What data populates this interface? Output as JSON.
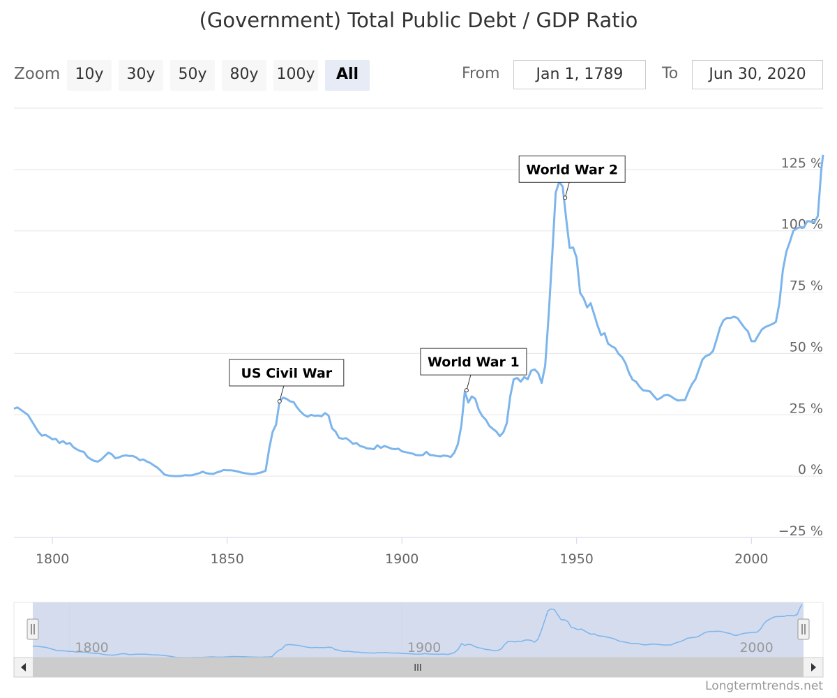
{
  "title": "(Government) Total Public Debt / GDP Ratio",
  "range_selector": {
    "zoom_label": "Zoom",
    "buttons": [
      "10y",
      "30y",
      "50y",
      "80y",
      "100y",
      "All"
    ],
    "active": "All",
    "from_label": "From",
    "from_value": "Jan 1, 1789",
    "to_label": "To",
    "to_value": "Jun 30, 2020"
  },
  "footer": "Longtermtrends.net",
  "navigator": {
    "tick_labels": [
      "1800",
      "1900",
      "2000"
    ],
    "scrollbar_grip": "III"
  },
  "colors": {
    "series": "#7cb5ec",
    "navigator_mask": "#ccd6eb"
  },
  "chart_data": {
    "type": "line",
    "title": "(Government) Total Public Debt / GDP Ratio",
    "xlabel": "",
    "ylabel": "",
    "x_ticks": [
      "1800",
      "1850",
      "1900",
      "1950",
      "2000"
    ],
    "y_ticks": [
      "125 %",
      "100 %",
      "75 %",
      "50 %",
      "25 %",
      "0 %",
      "−25 %"
    ],
    "xlim": [
      1789,
      2020.5
    ],
    "ylim": [
      -25,
      150
    ],
    "grid": true,
    "series": [
      {
        "values": [
          [
            1789,
            27.5
          ],
          [
            1790,
            28
          ],
          [
            1793,
            25
          ],
          [
            1796,
            18
          ],
          [
            1797,
            16.5
          ],
          [
            1798,
            16.8
          ],
          [
            1799,
            16
          ],
          [
            1800,
            15
          ],
          [
            1801,
            15.2
          ],
          [
            1802,
            13.5
          ],
          [
            1803,
            14.3
          ],
          [
            1804,
            13.2
          ],
          [
            1805,
            13.5
          ],
          [
            1806,
            11.8
          ],
          [
            1807,
            10.9
          ],
          [
            1808,
            10.2
          ],
          [
            1809,
            9.9
          ],
          [
            1810,
            7.9
          ],
          [
            1811,
            6.9
          ],
          [
            1812,
            6.2
          ],
          [
            1813,
            5.9
          ],
          [
            1814,
            6.8
          ],
          [
            1815,
            8.2
          ],
          [
            1816,
            9.6
          ],
          [
            1817,
            8.9
          ],
          [
            1818,
            7.3
          ],
          [
            1819,
            7.6
          ],
          [
            1820,
            8.2
          ],
          [
            1821,
            8.5
          ],
          [
            1822,
            8.2
          ],
          [
            1823,
            8.2
          ],
          [
            1824,
            7.6
          ],
          [
            1825,
            6.5
          ],
          [
            1826,
            6.8
          ],
          [
            1827,
            6
          ],
          [
            1828,
            5.4
          ],
          [
            1829,
            4.4
          ],
          [
            1830,
            3.5
          ],
          [
            1831,
            2.2
          ],
          [
            1832,
            0.7
          ],
          [
            1833,
            0.3
          ],
          [
            1834,
            0.1
          ],
          [
            1835,
            0
          ],
          [
            1836,
            0
          ],
          [
            1837,
            0.1
          ],
          [
            1838,
            0.4
          ],
          [
            1839,
            0.3
          ],
          [
            1840,
            0.4
          ],
          [
            1841,
            0.8
          ],
          [
            1842,
            1.2
          ],
          [
            1843,
            1.8
          ],
          [
            1844,
            1.2
          ],
          [
            1845,
            1
          ],
          [
            1846,
            0.9
          ],
          [
            1847,
            1.5
          ],
          [
            1848,
            1.9
          ],
          [
            1849,
            2.5
          ],
          [
            1850,
            2.4
          ],
          [
            1851,
            2.4
          ],
          [
            1852,
            2.2
          ],
          [
            1853,
            1.9
          ],
          [
            1854,
            1.5
          ],
          [
            1855,
            1.2
          ],
          [
            1856,
            1
          ],
          [
            1857,
            0.8
          ],
          [
            1858,
            0.9
          ],
          [
            1859,
            1.3
          ],
          [
            1860,
            1.6
          ],
          [
            1861,
            2.2
          ],
          [
            1862,
            11
          ],
          [
            1863,
            18
          ],
          [
            1864,
            21
          ],
          [
            1865,
            30.5
          ],
          [
            1866,
            32
          ],
          [
            1867,
            31.5
          ],
          [
            1868,
            30.5
          ],
          [
            1869,
            30.2
          ],
          [
            1870,
            28
          ],
          [
            1871,
            26.3
          ],
          [
            1872,
            25
          ],
          [
            1873,
            24.2
          ],
          [
            1874,
            25
          ],
          [
            1875,
            24.6
          ],
          [
            1876,
            24.7
          ],
          [
            1877,
            24.4
          ],
          [
            1878,
            25.7
          ],
          [
            1879,
            24.7
          ],
          [
            1880,
            19.5
          ],
          [
            1881,
            18.2
          ],
          [
            1882,
            15.6
          ],
          [
            1883,
            15.2
          ],
          [
            1884,
            15.5
          ],
          [
            1885,
            14.5
          ],
          [
            1886,
            13.2
          ],
          [
            1887,
            13.5
          ],
          [
            1888,
            12.3
          ],
          [
            1889,
            11.9
          ],
          [
            1890,
            11.3
          ],
          [
            1891,
            11.2
          ],
          [
            1892,
            11
          ],
          [
            1893,
            12.6
          ],
          [
            1894,
            11.5
          ],
          [
            1895,
            12.3
          ],
          [
            1896,
            11.8
          ],
          [
            1897,
            11.2
          ],
          [
            1898,
            11
          ],
          [
            1899,
            11.2
          ],
          [
            1900,
            10.1
          ],
          [
            1901,
            9.8
          ],
          [
            1902,
            9.5
          ],
          [
            1903,
            9.2
          ],
          [
            1904,
            8.6
          ],
          [
            1905,
            8.5
          ],
          [
            1906,
            8.6
          ],
          [
            1907,
            9.9
          ],
          [
            1908,
            8.6
          ],
          [
            1909,
            8.5
          ],
          [
            1910,
            8.2
          ],
          [
            1911,
            8
          ],
          [
            1912,
            8.4
          ],
          [
            1913,
            8.2
          ],
          [
            1914,
            7.8
          ],
          [
            1915,
            9.6
          ],
          [
            1916,
            13
          ],
          [
            1917,
            20.5
          ],
          [
            1918,
            34.5
          ],
          [
            1919,
            30
          ],
          [
            1920,
            32.5
          ],
          [
            1921,
            31.5
          ],
          [
            1922,
            27
          ],
          [
            1923,
            24.5
          ],
          [
            1924,
            23
          ],
          [
            1925,
            20.5
          ],
          [
            1926,
            19.3
          ],
          [
            1927,
            18.2
          ],
          [
            1928,
            16.3
          ],
          [
            1929,
            17.8
          ],
          [
            1930,
            21.5
          ],
          [
            1931,
            32.5
          ],
          [
            1932,
            39.5
          ],
          [
            1933,
            40
          ],
          [
            1934,
            38.5
          ],
          [
            1935,
            40.4
          ],
          [
            1936,
            39.5
          ],
          [
            1937,
            43
          ],
          [
            1938,
            43.5
          ],
          [
            1939,
            42
          ],
          [
            1940,
            38
          ],
          [
            1941,
            45
          ],
          [
            1942,
            66
          ],
          [
            1943,
            90
          ],
          [
            1944,
            115.5
          ],
          [
            1945,
            120
          ],
          [
            1946,
            118
          ],
          [
            1947,
            105
          ],
          [
            1948,
            93
          ],
          [
            1949,
            93.2
          ],
          [
            1950,
            89
          ],
          [
            1951,
            74.7
          ],
          [
            1952,
            72.5
          ],
          [
            1953,
            68.8
          ],
          [
            1954,
            70.5
          ],
          [
            1955,
            66
          ],
          [
            1956,
            61.3
          ],
          [
            1957,
            57.5
          ],
          [
            1958,
            58.3
          ],
          [
            1959,
            54
          ],
          [
            1960,
            53
          ],
          [
            1961,
            52.2
          ],
          [
            1962,
            49.8
          ],
          [
            1963,
            48.5
          ],
          [
            1964,
            46
          ],
          [
            1965,
            42
          ],
          [
            1966,
            39.3
          ],
          [
            1967,
            38.5
          ],
          [
            1968,
            36.5
          ],
          [
            1969,
            35
          ],
          [
            1970,
            34.8
          ],
          [
            1971,
            34.5
          ],
          [
            1972,
            32.8
          ],
          [
            1973,
            31.2
          ],
          [
            1974,
            31.8
          ],
          [
            1975,
            32.9
          ],
          [
            1976,
            33.2
          ],
          [
            1977,
            32.5
          ],
          [
            1978,
            31.5
          ],
          [
            1979,
            30.8
          ],
          [
            1980,
            31
          ],
          [
            1981,
            31
          ],
          [
            1982,
            34.5
          ],
          [
            1983,
            37.5
          ],
          [
            1984,
            39.5
          ],
          [
            1985,
            43.5
          ],
          [
            1986,
            47.5
          ],
          [
            1987,
            49
          ],
          [
            1988,
            49.5
          ],
          [
            1989,
            51
          ],
          [
            1990,
            55.5
          ],
          [
            1991,
            60.5
          ],
          [
            1992,
            63.5
          ],
          [
            1993,
            64.5
          ],
          [
            1994,
            64.4
          ],
          [
            1995,
            65
          ],
          [
            1996,
            64.5
          ],
          [
            1997,
            62.5
          ],
          [
            1998,
            60.5
          ],
          [
            1999,
            59
          ],
          [
            2000,
            55
          ],
          [
            2001,
            55
          ],
          [
            2002,
            57.5
          ],
          [
            2003,
            59.8
          ],
          [
            2004,
            60.8
          ],
          [
            2005,
            61.4
          ],
          [
            2006,
            62
          ],
          [
            2007,
            62.9
          ],
          [
            2008,
            70.5
          ],
          [
            2009,
            84
          ],
          [
            2010,
            91.5
          ],
          [
            2011,
            95.5
          ],
          [
            2012,
            100
          ],
          [
            2013,
            101
          ],
          [
            2014,
            101.5
          ],
          [
            2015,
            101.3
          ],
          [
            2016,
            104
          ],
          [
            2017,
            103.8
          ],
          [
            2018,
            103.5
          ],
          [
            2019,
            106
          ],
          [
            2020,
            125
          ],
          [
            2020.5,
            131
          ]
        ]
      }
    ],
    "annotations": [
      {
        "label": "US Civil War",
        "x": 1865,
        "y": 30.5
      },
      {
        "label": "World War 1",
        "x": 1918.5,
        "y": 35
      },
      {
        "label": "World War 2",
        "x": 1946.7,
        "y": 113.5
      }
    ]
  }
}
